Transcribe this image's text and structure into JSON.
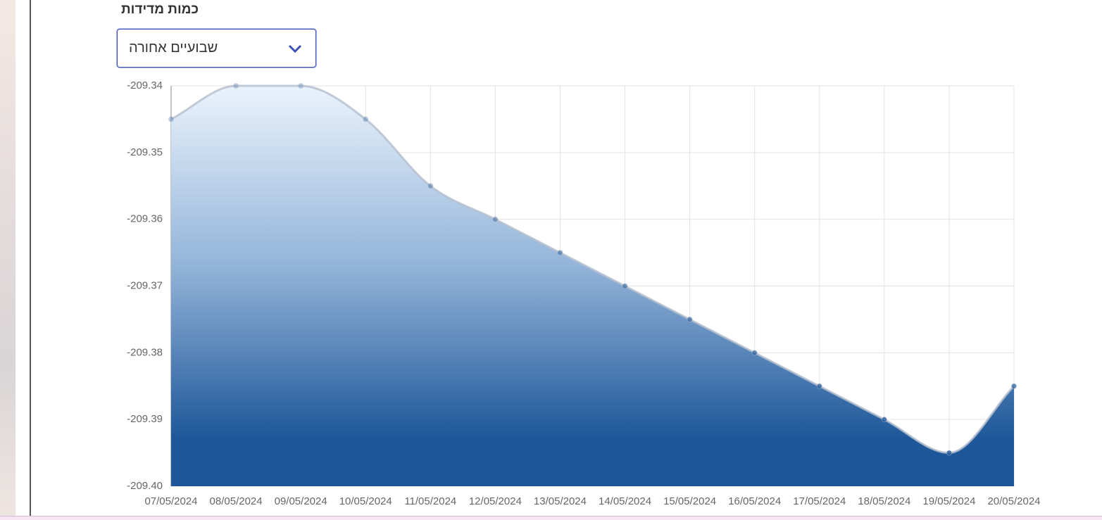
{
  "form": {
    "label": "כמות מדידות",
    "select_value": "שבועיים אחורה"
  },
  "chart_data": {
    "type": "line",
    "categories": [
      "07/05/2024",
      "08/05/2024",
      "09/05/2024",
      "10/05/2024",
      "11/05/2024",
      "12/05/2024",
      "13/05/2024",
      "14/05/2024",
      "15/05/2024",
      "16/05/2024",
      "17/05/2024",
      "18/05/2024",
      "19/05/2024",
      "20/05/2024"
    ],
    "values": [
      -209.345,
      -209.34,
      -209.34,
      -209.345,
      -209.355,
      -209.36,
      -209.365,
      -209.37,
      -209.375,
      -209.38,
      -209.385,
      -209.39,
      -209.395,
      -209.385
    ],
    "color": "#1e5799",
    "ylim": [
      -209.4,
      -209.34
    ],
    "yticks": [
      -209.34,
      -209.35,
      -209.36,
      -209.37,
      -209.38,
      -209.39,
      {
        "value": -209.4,
        "label": "-209.40"
      }
    ],
    "grid": true,
    "fill": true
  }
}
